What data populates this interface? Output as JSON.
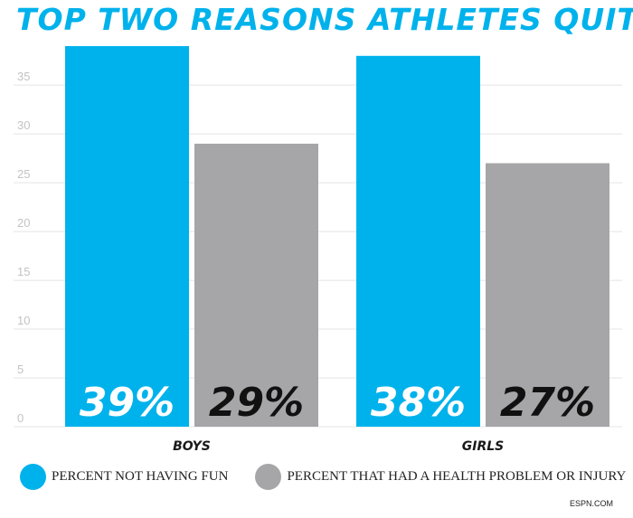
{
  "chart_data": {
    "type": "bar",
    "title": "TOP TWO REASONS ATHLETES QUIT",
    "categories": [
      "BOYS",
      "GIRLS"
    ],
    "series": [
      {
        "name": "PERCENT NOT HAVING FUN",
        "values": [
          39,
          38
        ],
        "labels": [
          "39%",
          "38%"
        ],
        "color": "#00b2ec",
        "label_color": "#ffffff"
      },
      {
        "name": "PERCENT THAT HAD A HEALTH PROBLEM OR INJURY",
        "values": [
          29,
          27
        ],
        "labels": [
          "29%",
          "27%"
        ],
        "color": "#a6a6a8",
        "label_color": "#111111"
      }
    ],
    "y_ticks": [
      0,
      5,
      10,
      15,
      20,
      25,
      30,
      35
    ],
    "ylim": [
      0,
      39
    ],
    "grid": true,
    "legend_position": "bottom",
    "xlabel": "",
    "ylabel": ""
  },
  "credit": "ESPN.COM"
}
